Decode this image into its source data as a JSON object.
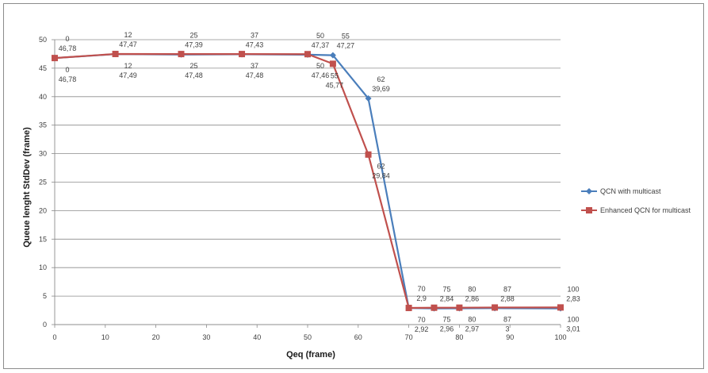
{
  "chart_data": {
    "type": "line",
    "title": "",
    "xlabel": "Qeq (frame)",
    "ylabel": "Queue lenght StdDev (frame)",
    "xlim": [
      0,
      100
    ],
    "ylim": [
      0,
      50
    ],
    "x_ticks": [
      0,
      10,
      20,
      30,
      40,
      50,
      60,
      70,
      80,
      90,
      100
    ],
    "y_ticks": [
      0,
      5,
      10,
      15,
      20,
      25,
      30,
      35,
      40,
      45,
      50
    ],
    "grid": "horizontal",
    "legend_position": "right",
    "series": [
      {
        "name": "QCN with multicast",
        "color": "#4a7ebb",
        "marker": "diamond",
        "x": [
          0,
          12,
          25,
          37,
          50,
          55,
          62,
          70,
          75,
          80,
          87,
          100
        ],
        "y": [
          46.78,
          47.47,
          47.39,
          47.43,
          47.37,
          47.27,
          39.69,
          2.9,
          2.84,
          2.86,
          2.88,
          2.83
        ],
        "point_labels": [
          [
            "0",
            "46,78"
          ],
          [
            "12",
            "47,47"
          ],
          [
            "25",
            "47,39"
          ],
          [
            "37",
            "47,43"
          ],
          [
            "50",
            "47,37"
          ],
          [
            "55",
            "47,27"
          ],
          [
            "62",
            "39,69"
          ],
          [
            "70",
            "2,9"
          ],
          [
            "75",
            "2,84"
          ],
          [
            "80",
            "2,86"
          ],
          [
            "87",
            "2,88"
          ],
          [
            "100",
            "2,83"
          ]
        ]
      },
      {
        "name": "Enhanced QCN for multicast",
        "color": "#c0504d",
        "marker": "square",
        "x": [
          0,
          12,
          25,
          37,
          50,
          55,
          62,
          70,
          75,
          80,
          87,
          100
        ],
        "y": [
          46.78,
          47.49,
          47.48,
          47.48,
          47.46,
          45.77,
          29.84,
          2.92,
          2.96,
          2.97,
          3.0,
          3.01
        ],
        "point_labels": [
          [
            "0",
            "46,78"
          ],
          [
            "12",
            "47,49"
          ],
          [
            "25",
            "47,48"
          ],
          [
            "37",
            "47,48"
          ],
          [
            "50",
            "47,46"
          ],
          [
            "55",
            "45,77"
          ],
          [
            "62",
            "29,84"
          ],
          [
            "70",
            "2,92"
          ],
          [
            "75",
            "2,96"
          ],
          [
            "80",
            "2,97"
          ],
          [
            "87",
            "3"
          ],
          [
            "100",
            "3,01"
          ]
        ]
      }
    ]
  }
}
